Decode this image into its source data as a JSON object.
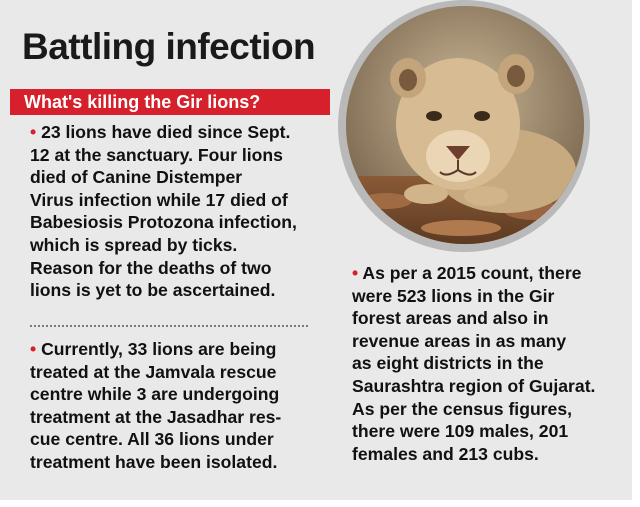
{
  "title": "Battling infection",
  "subhead": "What's killing the Gir lions?",
  "bullet_symbol": "•",
  "paragraphs": [
    {
      "lines": [
        "23 lions have died since Sept.",
        "12 at the sanctuary. Four lions",
        "died of Canine Distemper",
        "Virus infection while 17 died of",
        "Babesiosis Protozona infection,",
        "which is spread by ticks.",
        "Reason for the deaths of two",
        "lions is yet to be ascertained."
      ]
    },
    {
      "lines": [
        "Currently, 33 lions are being",
        "treated at the Jamvala rescue",
        "centre while 3 are undergoing",
        "treatment at the Jasadhar res-",
        "cue centre. All 36 lions under",
        "treatment have been isolated."
      ]
    },
    {
      "lines": [
        "As per a 2015 count, there",
        "were 523 lions in the Gir",
        "forest areas and also in",
        "revenue areas in as many",
        "as eight districts in the",
        "Saurashtra region of Gujarat.",
        "As per the census figures,",
        "there were 109 males, 201",
        "females and 213 cubs."
      ]
    }
  ],
  "photo": {
    "subject": "lion-photo"
  },
  "colors": {
    "accent": "#d6202b",
    "background": "#e9e9e9",
    "text": "#111111"
  }
}
